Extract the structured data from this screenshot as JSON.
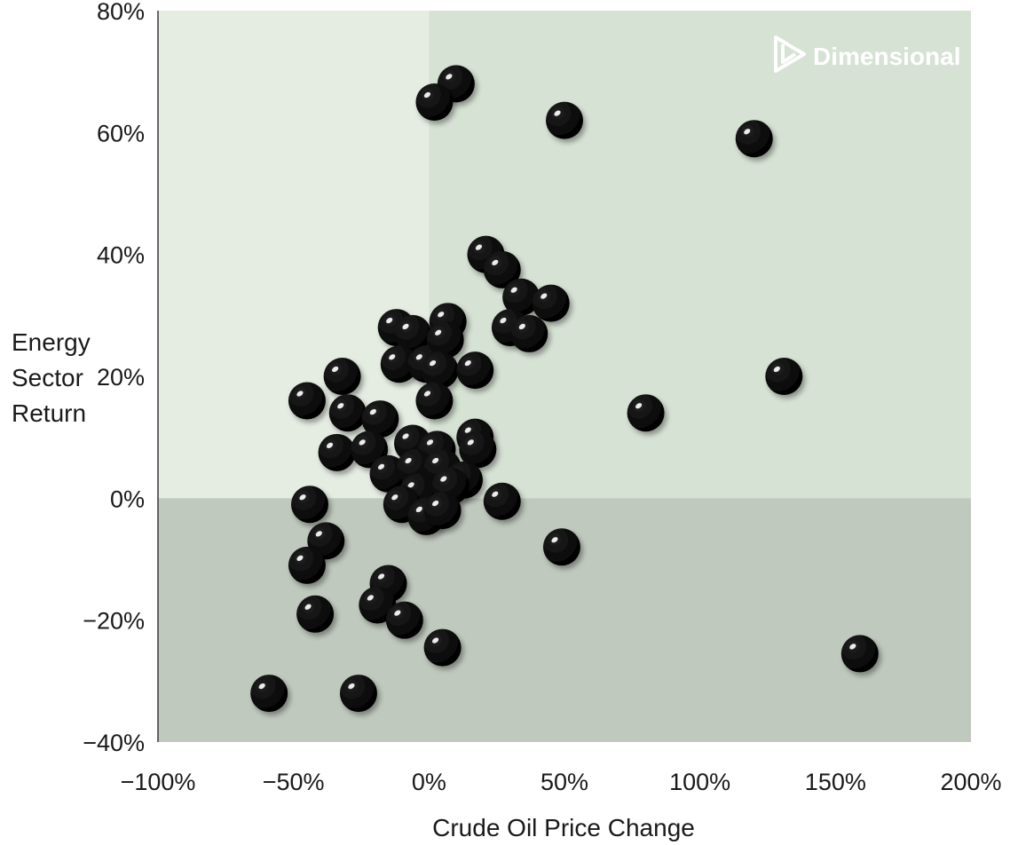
{
  "colors": {
    "upper_left": "#e5ede3",
    "upper_right": "#d6e2d4",
    "lower": "#c0c9be",
    "axis": "#3a3a3a",
    "marker": "#0b0b0b",
    "logo": "#ffffff"
  },
  "logo": {
    "text": "Dimensional",
    "icon": "dimensional-logo-icon"
  },
  "chart_data": {
    "type": "scatter",
    "xlabel": "Crude Oil Price Change",
    "ylabel": [
      "Energy",
      "Sector",
      "Return"
    ],
    "xlim": [
      -100,
      200
    ],
    "ylim": [
      -40,
      80
    ],
    "x_ticks": [
      {
        "value": -100,
        "label": "−100%"
      },
      {
        "value": -50,
        "label": "−50%"
      },
      {
        "value": 0,
        "label": "0%"
      },
      {
        "value": 50,
        "label": "50%"
      },
      {
        "value": 100,
        "label": "100%"
      },
      {
        "value": 150,
        "label": "150%"
      },
      {
        "value": 200,
        "label": "200%"
      }
    ],
    "y_ticks": [
      {
        "value": 80,
        "label": "80%"
      },
      {
        "value": 60,
        "label": "60%"
      },
      {
        "value": 40,
        "label": "40%"
      },
      {
        "value": 20,
        "label": "20%"
      },
      {
        "value": 0,
        "label": "0%"
      },
      {
        "value": -20,
        "label": "−20%"
      },
      {
        "value": -40,
        "label": "−40%"
      }
    ],
    "grid": false,
    "quadrant_shading": {
      "x_split": 0,
      "y_split": 0
    },
    "points": [
      {
        "x": 10,
        "y": 68
      },
      {
        "x": 2,
        "y": 65
      },
      {
        "x": 50,
        "y": 62
      },
      {
        "x": 120,
        "y": 59
      },
      {
        "x": 21,
        "y": 40
      },
      {
        "x": 27,
        "y": 37.5
      },
      {
        "x": 34,
        "y": 33
      },
      {
        "x": 45,
        "y": 32
      },
      {
        "x": 30,
        "y": 28
      },
      {
        "x": 37,
        "y": 27
      },
      {
        "x": -12,
        "y": 28
      },
      {
        "x": -6,
        "y": 27
      },
      {
        "x": 7,
        "y": 29
      },
      {
        "x": 6,
        "y": 26
      },
      {
        "x": -11,
        "y": 22
      },
      {
        "x": -1,
        "y": 22
      },
      {
        "x": 4,
        "y": 21
      },
      {
        "x": 17,
        "y": 21
      },
      {
        "x": 2,
        "y": 16
      },
      {
        "x": -32,
        "y": 20
      },
      {
        "x": -45,
        "y": 16
      },
      {
        "x": -30,
        "y": 14
      },
      {
        "x": -18,
        "y": 13
      },
      {
        "x": 80,
        "y": 14
      },
      {
        "x": 131,
        "y": 20
      },
      {
        "x": -34,
        "y": 7.5
      },
      {
        "x": -22,
        "y": 8
      },
      {
        "x": -6,
        "y": 9
      },
      {
        "x": 3,
        "y": 8
      },
      {
        "x": 17,
        "y": 10
      },
      {
        "x": 18,
        "y": 8
      },
      {
        "x": -15,
        "y": 4
      },
      {
        "x": -5,
        "y": 5
      },
      {
        "x": 5,
        "y": 5
      },
      {
        "x": 13,
        "y": 3
      },
      {
        "x": -4,
        "y": 1
      },
      {
        "x": 8,
        "y": 2
      },
      {
        "x": -10,
        "y": -1
      },
      {
        "x": -1,
        "y": -3
      },
      {
        "x": 5,
        "y": -2
      },
      {
        "x": 27,
        "y": -0.5
      },
      {
        "x": -44,
        "y": -1
      },
      {
        "x": -38,
        "y": -7
      },
      {
        "x": -45,
        "y": -11
      },
      {
        "x": 49,
        "y": -8
      },
      {
        "x": -15,
        "y": -14
      },
      {
        "x": -19,
        "y": -17.5
      },
      {
        "x": -9,
        "y": -20
      },
      {
        "x": -42,
        "y": -19
      },
      {
        "x": 5,
        "y": -24.5
      },
      {
        "x": -59,
        "y": -32
      },
      {
        "x": -26,
        "y": -32
      },
      {
        "x": 159,
        "y": -25.5
      }
    ]
  }
}
